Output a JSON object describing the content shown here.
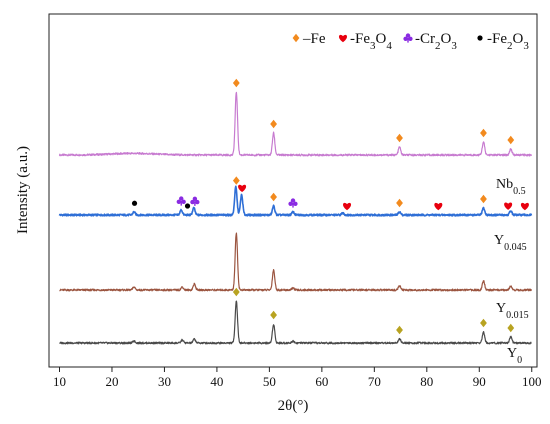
{
  "chart_data": {
    "type": "line",
    "xlabel": "2θ(°)",
    "ylabel": "Intensity (a.u.)",
    "xlim": [
      8,
      101
    ],
    "xticks": [
      10,
      20,
      30,
      40,
      50,
      60,
      70,
      80,
      90,
      100
    ],
    "yticks": "none",
    "grid": false,
    "legend": {
      "placement": "top-right",
      "entries": [
        {
          "symbol": "diamond",
          "color": "#f28a1e",
          "label": "–Fe"
        },
        {
          "symbol": "heart",
          "color": "#e8000e",
          "label": "-Fe3O4",
          "label_main": "-Fe",
          "label_sub1": "3",
          "label_mid": "O",
          "label_sub2": "4"
        },
        {
          "symbol": "club",
          "color": "#8a2be2",
          "label": "-Cr2O3",
          "label_main": "-Cr",
          "label_sub1": "2",
          "label_mid": "O",
          "label_sub2": "3"
        },
        {
          "symbol": "dot",
          "color": "#000000",
          "label": "-Fe2O3",
          "label_main": "-Fe",
          "label_sub1": "2",
          "label_mid": "O",
          "label_sub2": "3"
        }
      ]
    },
    "series": [
      {
        "name": "Nb0.5",
        "label_main": "Nb",
        "label_sub": "0.5",
        "color": "#c77bd0",
        "peaks": [
          {
            "x": 43.7,
            "h": 63
          },
          {
            "x": 50.8,
            "h": 22
          },
          {
            "x": 74.8,
            "h": 8
          },
          {
            "x": 90.8,
            "h": 13
          },
          {
            "x": 96.0,
            "h": 6
          }
        ],
        "markers": [
          {
            "x": 43.7,
            "symbol": "diamond"
          },
          {
            "x": 50.8,
            "symbol": "diamond"
          },
          {
            "x": 74.8,
            "symbol": "diamond"
          },
          {
            "x": 90.8,
            "symbol": "diamond"
          },
          {
            "x": 96.0,
            "symbol": "diamond"
          }
        ]
      },
      {
        "name": "Y0.045",
        "label_main": "Y",
        "label_sub": "0.045",
        "color": "#2f6fd6",
        "peaks": [
          {
            "x": 24.2,
            "h": 3
          },
          {
            "x": 33.2,
            "h": 5
          },
          {
            "x": 35.6,
            "h": 7
          },
          {
            "x": 43.6,
            "h": 28
          },
          {
            "x": 44.7,
            "h": 20
          },
          {
            "x": 50.8,
            "h": 9
          },
          {
            "x": 54.5,
            "h": 3
          },
          {
            "x": 64.0,
            "h": 2
          },
          {
            "x": 74.8,
            "h": 3
          },
          {
            "x": 90.8,
            "h": 7
          },
          {
            "x": 96.0,
            "h": 4
          }
        ],
        "markers": [
          {
            "x": 24.3,
            "symbol": "dot"
          },
          {
            "x": 33.2,
            "symbol": "club"
          },
          {
            "x": 34.4,
            "symbol": "dot"
          },
          {
            "x": 35.8,
            "symbol": "club"
          },
          {
            "x": 43.7,
            "symbol": "diamond"
          },
          {
            "x": 44.8,
            "symbol": "heart"
          },
          {
            "x": 50.8,
            "symbol": "diamond"
          },
          {
            "x": 54.5,
            "symbol": "club"
          },
          {
            "x": 64.8,
            "symbol": "heart"
          },
          {
            "x": 74.8,
            "symbol": "diamond"
          },
          {
            "x": 82.2,
            "symbol": "heart"
          },
          {
            "x": 90.8,
            "symbol": "diamond"
          },
          {
            "x": 95.5,
            "symbol": "heart"
          },
          {
            "x": 98.7,
            "symbol": "heart"
          }
        ]
      },
      {
        "name": "Y0.015",
        "label_main": "Y",
        "label_sub": "0.015",
        "color": "#9b5540",
        "peaks": [
          {
            "x": 24.2,
            "h": 3
          },
          {
            "x": 33.4,
            "h": 3
          },
          {
            "x": 35.7,
            "h": 6
          },
          {
            "x": 43.7,
            "h": 57
          },
          {
            "x": 50.8,
            "h": 20
          },
          {
            "x": 54.5,
            "h": 2
          },
          {
            "x": 74.8,
            "h": 4
          },
          {
            "x": 90.8,
            "h": 9
          },
          {
            "x": 96.0,
            "h": 4
          }
        ],
        "markers": []
      },
      {
        "name": "Y0",
        "label_main": "Y",
        "label_sub": "0",
        "color": "#4a4a4a",
        "peaks": [
          {
            "x": 24.2,
            "h": 2
          },
          {
            "x": 33.4,
            "h": 3
          },
          {
            "x": 35.7,
            "h": 4
          },
          {
            "x": 43.7,
            "h": 42
          },
          {
            "x": 50.8,
            "h": 19
          },
          {
            "x": 54.5,
            "h": 2
          },
          {
            "x": 74.8,
            "h": 4
          },
          {
            "x": 90.8,
            "h": 11
          },
          {
            "x": 96.0,
            "h": 6
          }
        ],
        "markers": [
          {
            "x": 43.7,
            "symbol": "diamond"
          },
          {
            "x": 50.8,
            "symbol": "diamond"
          },
          {
            "x": 74.8,
            "symbol": "diamond"
          },
          {
            "x": 90.8,
            "symbol": "diamond"
          },
          {
            "x": 96.0,
            "symbol": "diamond"
          }
        ]
      }
    ]
  }
}
